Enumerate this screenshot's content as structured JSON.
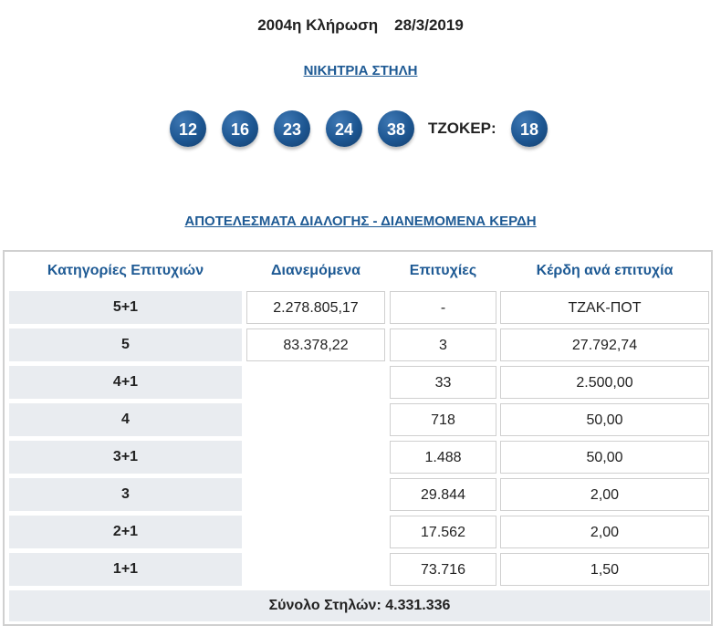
{
  "draw": {
    "title": "2004η Κλήρωση",
    "date": "28/3/2019"
  },
  "winning_column_label": "ΝΙΚΗΤΡΙΑ ΣΤΗΛΗ",
  "numbers": [
    "12",
    "16",
    "23",
    "24",
    "38"
  ],
  "joker_label": "ΤΖΟΚΕΡ:",
  "joker": "18",
  "results_title": "ΑΠΟΤΕΛΕΣΜΑΤΑ ΔΙΑΛΟΓΗΣ - ΔΙΑΝΕΜΟΜΕΝΑ ΚΕΡΔΗ",
  "table": {
    "headers": [
      "Κατηγορίες Επιτυχιών",
      "Διανεμόμενα",
      "Επιτυχίες",
      "Κέρδη ανά επιτυχία"
    ],
    "rows": [
      {
        "category": "5+1",
        "distributed": "2.278.805,17",
        "winners": "-",
        "prize": "ΤΖΑΚ-ΠΟΤ"
      },
      {
        "category": "5",
        "distributed": "83.378,22",
        "winners": "3",
        "prize": "27.792,74"
      },
      {
        "category": "4+1",
        "distributed": "",
        "winners": "33",
        "prize": "2.500,00"
      },
      {
        "category": "4",
        "distributed": "",
        "winners": "718",
        "prize": "50,00"
      },
      {
        "category": "3+1",
        "distributed": "",
        "winners": "1.488",
        "prize": "50,00"
      },
      {
        "category": "3",
        "distributed": "",
        "winners": "29.844",
        "prize": "2,00"
      },
      {
        "category": "2+1",
        "distributed": "",
        "winners": "17.562",
        "prize": "2,00"
      },
      {
        "category": "1+1",
        "distributed": "",
        "winners": "73.716",
        "prize": "1,50"
      }
    ],
    "total": "Σύνολο Στηλών: 4.331.336"
  },
  "colors": {
    "accent": "#1e5a94",
    "ball": "#1d5691",
    "category_bg": "#e9ecf0"
  }
}
